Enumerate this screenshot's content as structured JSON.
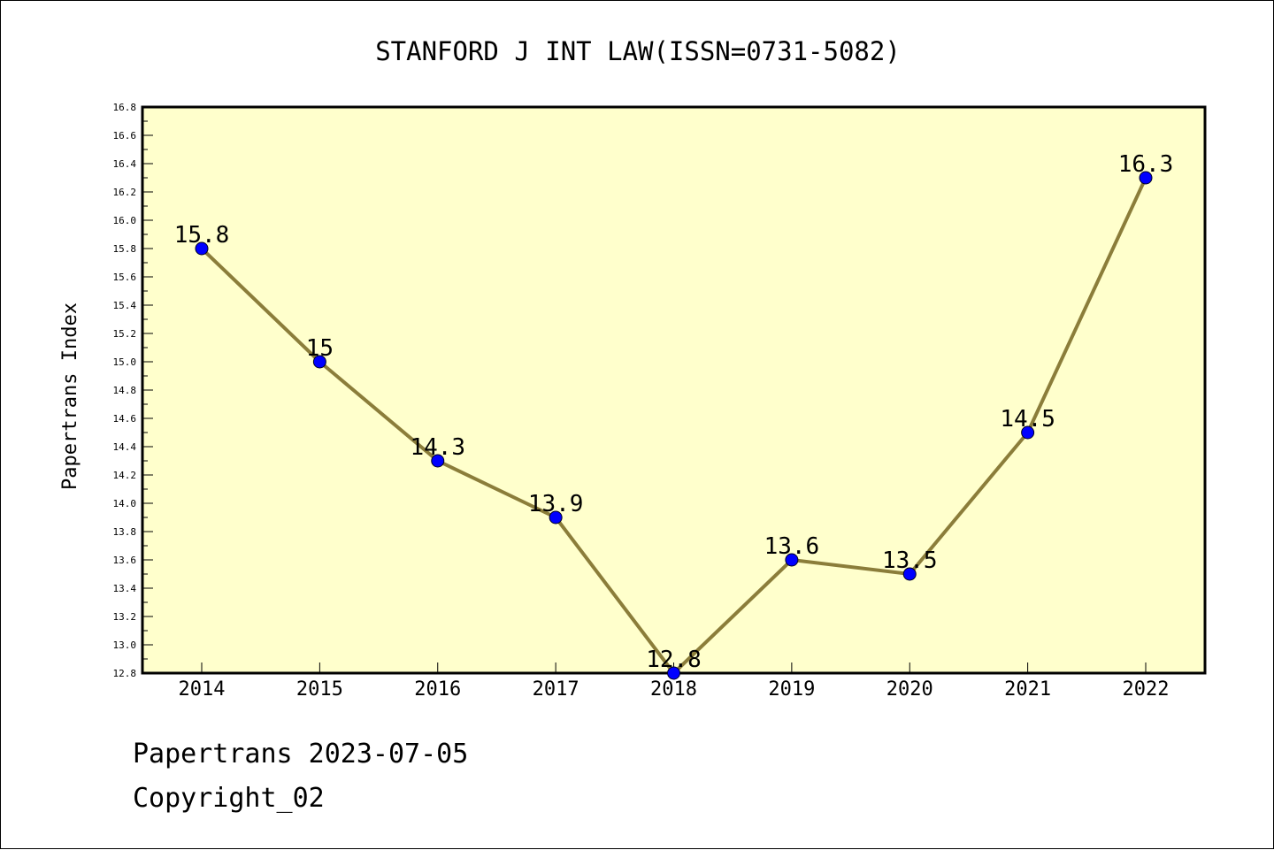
{
  "footer": {
    "source_line": "Papertrans 2023-07-05",
    "copyright_line": "Copyright_02"
  },
  "chart_data": {
    "type": "line",
    "title": "STANFORD J INT LAW(ISSN=0731-5082)",
    "xlabel": "",
    "ylabel": "Papertrans Index",
    "x": [
      "2014",
      "2015",
      "2016",
      "2017",
      "2018",
      "2019",
      "2020",
      "2021",
      "2022"
    ],
    "series": [
      {
        "values": [
          15.8,
          15.0,
          14.3,
          13.9,
          12.8,
          13.6,
          13.5,
          14.5,
          16.3
        ],
        "data_labels": [
          "15.8",
          "15",
          "14.3",
          "13.9",
          "12.8",
          "13.6",
          "13.5",
          "14.5",
          "16.3"
        ]
      }
    ],
    "ylim": [
      12.8,
      16.8
    ],
    "yticks": [
      "12.8",
      "13.0",
      "13.2",
      "13.4",
      "13.6",
      "13.8",
      "14.0",
      "14.2",
      "14.4",
      "14.6",
      "14.8",
      "15.0",
      "15.2",
      "15.4",
      "15.6",
      "15.8",
      "16.0",
      "16.2",
      "16.4",
      "16.6",
      "16.8"
    ],
    "grid": false,
    "legend": "none",
    "colors": {
      "plot_background": "#ffffcc",
      "line": "#8b7d3a",
      "marker": "#0000ff"
    }
  }
}
